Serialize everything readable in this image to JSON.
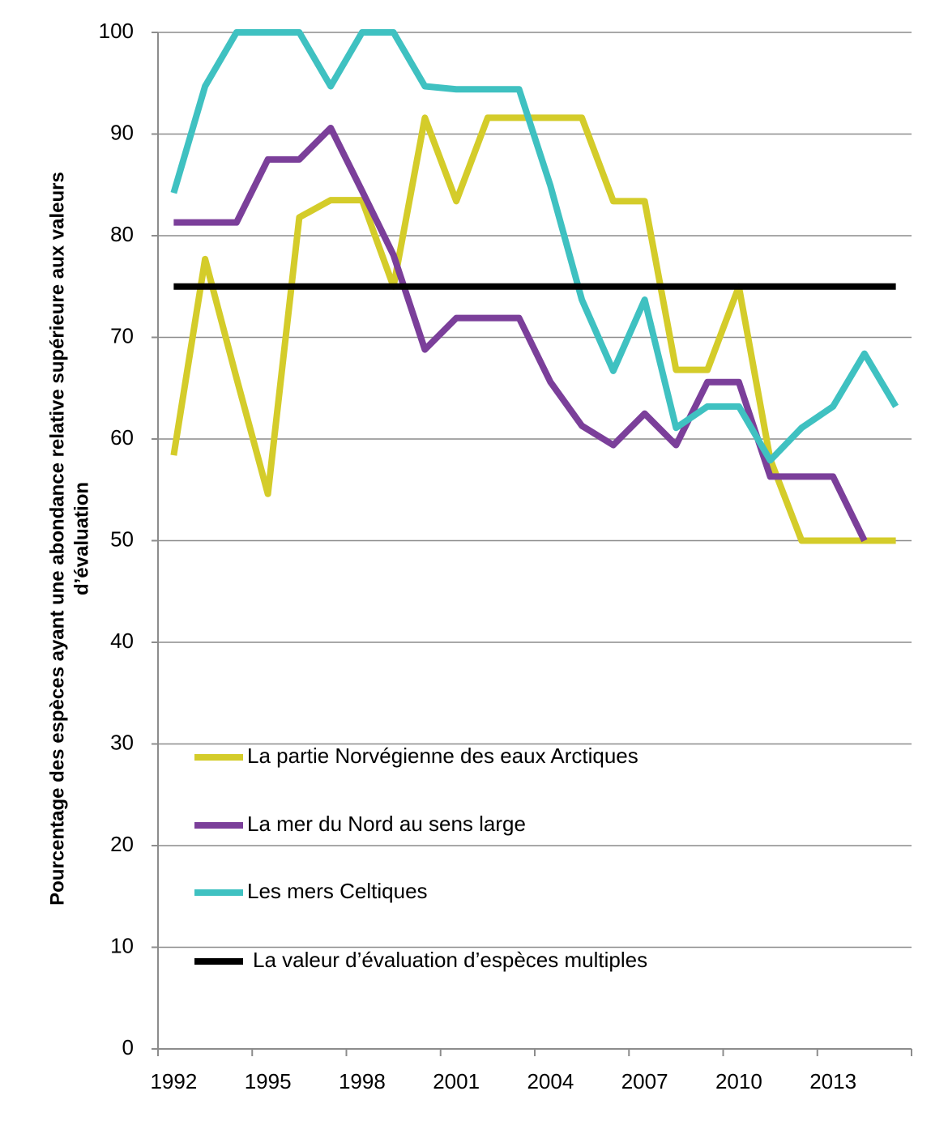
{
  "chart_data": {
    "type": "line",
    "y_label": [
      "Pourcentage des espèces ayant une abondance relative supérieure aux valeurs",
      "d’évaluation"
    ],
    "categories": [
      "1992",
      null,
      null,
      "1995",
      null,
      null,
      "1998",
      null,
      null,
      "2001",
      null,
      null,
      "2004",
      null,
      null,
      "2007",
      null,
      null,
      "2010",
      null,
      null,
      "2013",
      null,
      null
    ],
    "series": [
      {
        "name": "La partie Norvégienne des eaux Arctiques",
        "color": "#d4cc2a",
        "values": [
          58.4,
          77.7,
          66,
          54.6,
          81.8,
          83.5,
          83.5,
          75,
          91.6,
          83.4,
          91.6,
          91.6,
          91.6,
          91.6,
          83.4,
          83.4,
          66.8,
          66.8,
          75,
          58,
          50,
          50,
          50,
          50
        ]
      },
      {
        "name": "La mer du Nord au sens large",
        "color": "#7b3f9a",
        "values": [
          81.3,
          81.3,
          81.3,
          87.5,
          87.5,
          90.6,
          84.4,
          78.1,
          68.8,
          71.9,
          71.9,
          71.9,
          65.6,
          61.3,
          59.4,
          62.5,
          59.4,
          65.6,
          65.6,
          56.3,
          56.3,
          56.3,
          50,
          null
        ]
      },
      {
        "name": "Les mers Celtiques",
        "color": "#3fc1c1",
        "values": [
          84.2,
          94.7,
          100,
          100,
          100,
          94.7,
          100,
          100,
          94.7,
          94.4,
          94.4,
          94.4,
          84.9,
          73.7,
          66.7,
          73.7,
          61.1,
          63.2,
          63.2,
          57.9,
          61.1,
          63.2,
          68.4,
          63.2
        ]
      },
      {
        "name": "La valeur d’évaluation d’espèces multiples",
        "color": "#000000",
        "values": [
          75,
          75,
          75,
          75,
          75,
          75,
          75,
          75,
          75,
          75,
          75,
          75,
          75,
          75,
          75,
          75,
          75,
          75,
          75,
          75,
          75,
          75,
          75,
          75
        ]
      }
    ],
    "ylim": [
      0,
      100
    ],
    "yticks": [
      0,
      10,
      20,
      30,
      40,
      50,
      60,
      70,
      80,
      90,
      100
    ],
    "grid": true
  }
}
